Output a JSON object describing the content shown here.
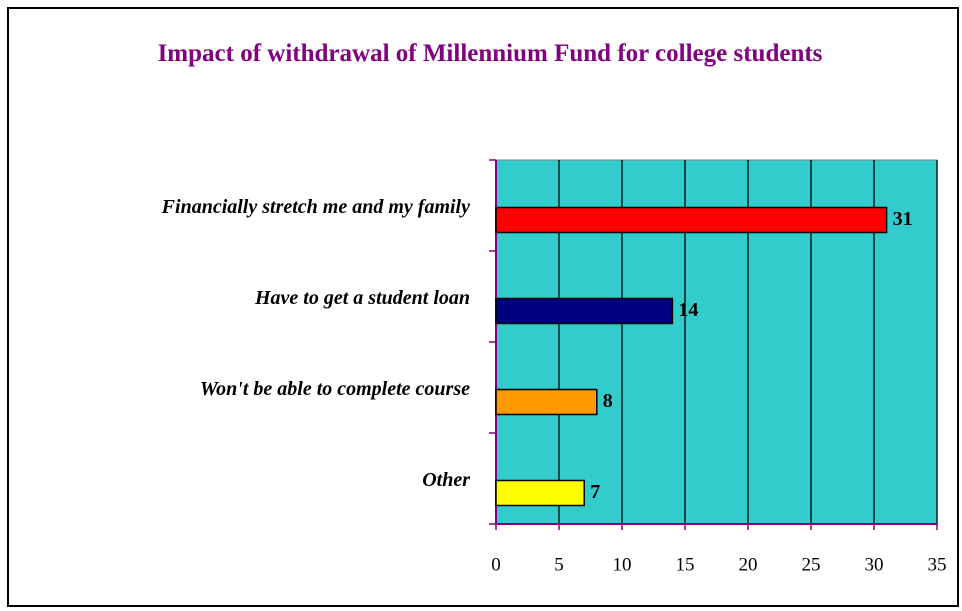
{
  "chart_data": {
    "type": "hbar",
    "title": "Impact of withdrawal of Millennium Fund for college students",
    "categories": [
      "Financially stretch me and my family",
      "Have to get a student loan",
      "Won't be able to complete course",
      "Other"
    ],
    "values": [
      31,
      14,
      8,
      7
    ],
    "colors": [
      "#ff0000",
      "#000080",
      "#ff9900",
      "#ffff00"
    ],
    "xlim": [
      0,
      35
    ],
    "xticks": [
      0,
      5,
      10,
      15,
      20,
      25,
      30,
      35
    ],
    "grid": true,
    "plot_background": "#33cccc"
  }
}
